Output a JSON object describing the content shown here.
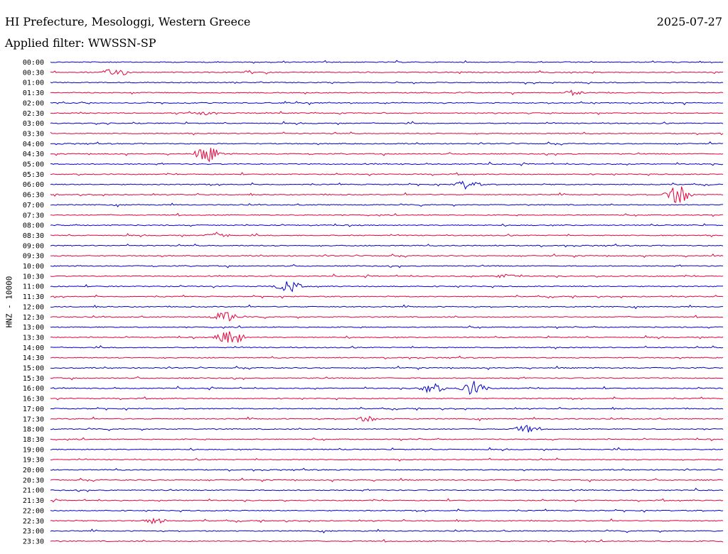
{
  "header": {
    "station": "HI Prefecture, Mesologgi, Western Greece",
    "date": "2025-07-27",
    "filter": "Applied filter: WWSSN-SP"
  },
  "colors": {
    "blue": "#0000cc",
    "red": "#e8003a"
  },
  "chart_data": {
    "type": "line",
    "title": "HI Prefecture, Mesologgi, Western Greece",
    "ylabel": "HNZ - 10000",
    "xlabel": "",
    "trace_labels": [
      "00:00",
      "00:30",
      "01:00",
      "01:30",
      "02:00",
      "02:30",
      "03:00",
      "03:30",
      "04:00",
      "04:30",
      "05:00",
      "05:30",
      "06:00",
      "06:30",
      "07:00",
      "07:30",
      "08:00",
      "08:30",
      "09:00",
      "09:30",
      "10:00",
      "10:30",
      "11:00",
      "11:30",
      "12:00",
      "12:30",
      "13:00",
      "13:30",
      "14:00",
      "14:30",
      "15:00",
      "15:30",
      "16:00",
      "16:30",
      "17:00",
      "17:30",
      "18:00",
      "18:30",
      "19:00",
      "19:30",
      "20:00",
      "20:30",
      "21:00",
      "21:30",
      "22:00",
      "22:30",
      "23:00",
      "23:30"
    ],
    "trace_colors": [
      "blue",
      "red"
    ],
    "events": [
      {
        "trace": "00:30",
        "minute": 2.9,
        "amplitude": 7
      },
      {
        "trace": "01:30",
        "minute": 23.3,
        "amplitude": 4
      },
      {
        "trace": "02:30",
        "minute": 6.9,
        "amplitude": 3
      },
      {
        "trace": "04:30",
        "minute": 7.0,
        "amplitude": 12
      },
      {
        "trace": "06:00",
        "minute": 18.6,
        "amplitude": 7
      },
      {
        "trace": "06:30",
        "minute": 28.0,
        "amplitude": 14
      },
      {
        "trace": "08:30",
        "minute": 7.5,
        "amplitude": 5
      },
      {
        "trace": "10:30",
        "minute": 20.4,
        "amplitude": 4
      },
      {
        "trace": "11:00",
        "minute": 10.6,
        "amplitude": 10
      },
      {
        "trace": "12:30",
        "minute": 7.8,
        "amplitude": 9
      },
      {
        "trace": "13:30",
        "minute": 8.0,
        "amplitude": 14
      },
      {
        "trace": "16:00",
        "minute": 17.0,
        "amplitude": 8
      },
      {
        "trace": "16:00",
        "minute": 18.9,
        "amplitude": 11
      },
      {
        "trace": "17:30",
        "minute": 14.1,
        "amplitude": 4
      },
      {
        "trace": "18:00",
        "minute": 21.2,
        "amplitude": 6
      },
      {
        "trace": "22:30",
        "minute": 4.6,
        "amplitude": 5
      }
    ]
  }
}
